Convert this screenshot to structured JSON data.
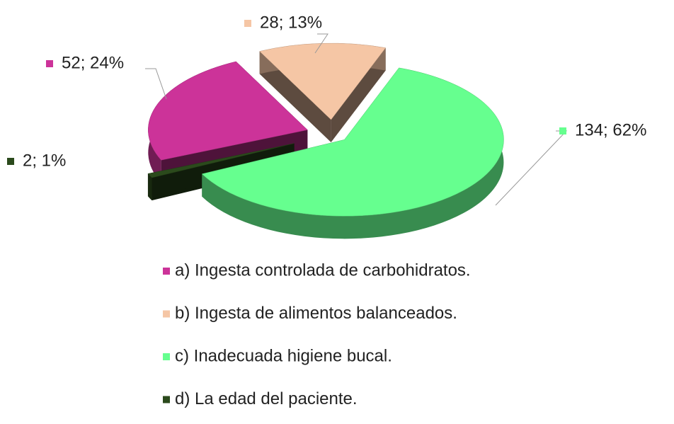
{
  "chart_data": {
    "type": "pie",
    "categories": [
      "a) Ingesta controlada de carbohidratos.",
      "b) Ingesta de alimentos balanceados.",
      "c) Inadecuada higiene bucal.",
      "d) La edad del paciente."
    ],
    "values": [
      52,
      28,
      134,
      2
    ],
    "value_labels": [
      "52; 24%",
      "28; 13%",
      "134; 62%",
      "2; 1%"
    ],
    "colors": [
      "#cc3399",
      "#f5c6a5",
      "#66ff8f",
      "#2b4a1c"
    ]
  }
}
